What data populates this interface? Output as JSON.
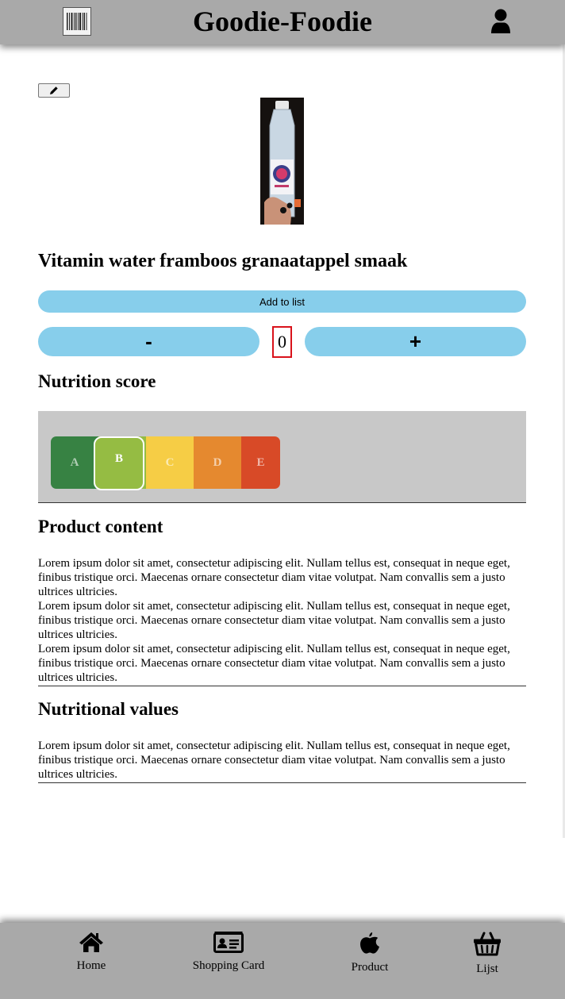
{
  "header": {
    "title": "Goodie-Foodie",
    "scan_icon": "barcode-icon",
    "profile_icon": "user-icon"
  },
  "product": {
    "edit_icon": "pencil-icon",
    "title": "Vitamin water framboos granaatappel smaak",
    "add_to_list_label": "Add to list",
    "minus_label": "-",
    "plus_label": "+",
    "quantity": "0"
  },
  "nutrition_score": {
    "heading": "Nutrition score",
    "grades": [
      "A",
      "B",
      "C",
      "D",
      "E"
    ],
    "selected": "B",
    "colors": {
      "A": "#378243",
      "B": "#95bc43",
      "C": "#f6cd45",
      "D": "#e5892f",
      "E": "#d84a27"
    }
  },
  "product_content": {
    "heading": "Product content",
    "paragraphs": [
      "Lorem ipsum dolor sit amet, consectetur adipiscing elit. Nullam tellus est, consequat in neque eget, finibus tristique orci. Maecenas ornare consectetur diam vitae volutpat. Nam convallis sem a justo ultrices ultricies.",
      "Lorem ipsum dolor sit amet, consectetur adipiscing elit. Nullam tellus est, consequat in neque eget, finibus tristique orci. Maecenas ornare consectetur diam vitae volutpat. Nam convallis sem a justo ultrices ultricies.",
      "Lorem ipsum dolor sit amet, consectetur adipiscing elit. Nullam tellus est, consequat in neque eget, finibus tristique orci. Maecenas ornare consectetur diam vitae volutpat. Nam convallis sem a justo ultrices ultricies."
    ]
  },
  "nutritional_values": {
    "heading": "Nutritional values",
    "paragraphs": [
      "Lorem ipsum dolor sit amet, consectetur adipiscing elit. Nullam tellus est, consequat in neque eget, finibus tristique orci. Maecenas ornare consectetur diam vitae volutpat. Nam convallis sem a justo ultrices ultricies."
    ]
  },
  "bottom_nav": {
    "items": [
      {
        "label": "Home",
        "icon": "home-icon"
      },
      {
        "label": "Shopping Card",
        "icon": "id-card-icon"
      },
      {
        "label": "Product",
        "icon": "apple-icon"
      },
      {
        "label": "Lijst",
        "icon": "basket-icon"
      }
    ]
  },
  "colors": {
    "bar_background": "#a9a9a9",
    "button_blue": "#87ceeb",
    "quantity_border": "#d9121b",
    "score_panel": "#c8c8c8"
  }
}
